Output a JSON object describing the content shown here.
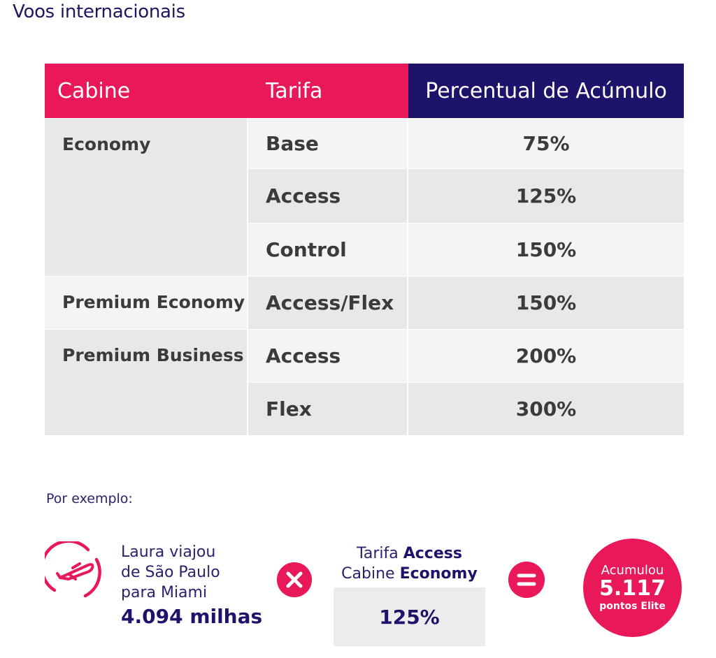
{
  "page": {
    "title": "Voos internacionais"
  },
  "table": {
    "headers": {
      "cabine": "Cabine",
      "tarifa": "Tarifa",
      "percentual": "Percentual de Acúmulo"
    },
    "cabins": [
      "Economy",
      "Premium Economy",
      "Premium Business"
    ],
    "rows": [
      {
        "tarifa": "Base",
        "percentual": "75%"
      },
      {
        "tarifa": "Access",
        "percentual": "125%"
      },
      {
        "tarifa": "Control",
        "percentual": "150%"
      },
      {
        "tarifa": "Access/Flex",
        "percentual": "150%"
      },
      {
        "tarifa": "Access",
        "percentual": "200%"
      },
      {
        "tarifa": "Flex",
        "percentual": "300%"
      }
    ]
  },
  "example": {
    "label": "Por exemplo:",
    "trip_lines": [
      "Laura viajou",
      "de São Paulo",
      "para Miami"
    ],
    "miles": "4.094 milhas",
    "fare_line1_prefix": "Tarifa ",
    "fare_line1_bold": "Access",
    "fare_line2_prefix": "Cabine ",
    "fare_line2_bold": "Economy",
    "fare_value": "125%",
    "result_label": "Acumulou",
    "result_value": "5.117",
    "result_sub": "pontos Elite"
  },
  "icons": {
    "plane": "airplane-takeoff-icon",
    "times": "multiply-icon",
    "equals": "equals-icon"
  },
  "colors": {
    "accent": "#e8185a",
    "navy": "#1e136b",
    "row_dark": "#e8e8e8",
    "row_light": "#f4f4f4"
  }
}
